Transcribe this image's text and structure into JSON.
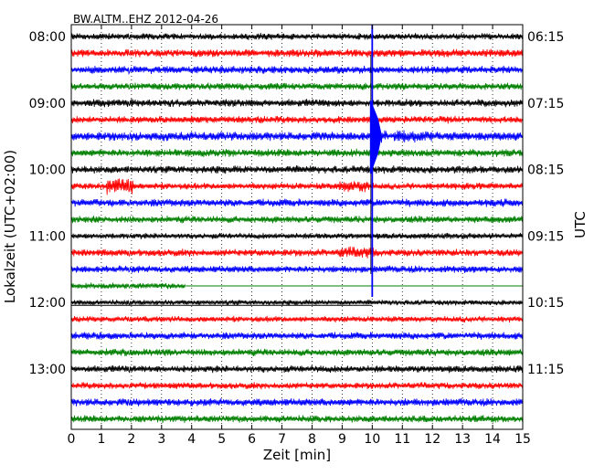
{
  "chart_data": {
    "type": "line",
    "title": "BW.ALTM..EHZ 2012-04-26",
    "xlabel": "Zeit  [min]",
    "ylabel_left": "Lokalzeit (UTC+02:00)",
    "ylabel_right": "UTC",
    "xlim": [
      0,
      15
    ],
    "x_ticks": [
      "0",
      "1",
      "2",
      "3",
      "4",
      "5",
      "6",
      "7",
      "8",
      "9",
      "10",
      "11",
      "12",
      "13",
      "14",
      "15"
    ],
    "grid": "vertical dotted lines at each minute",
    "left_tick_labels": [
      "08:00",
      "09:00",
      "10:00",
      "11:00",
      "12:00",
      "13:00"
    ],
    "right_tick_labels": [
      "06:15",
      "07:15",
      "08:15",
      "09:15",
      "10:15",
      "11:15"
    ],
    "colors": [
      "#000000",
      "#ff0000",
      "#0000ff",
      "#008000"
    ],
    "event": {
      "time_min": 10.0,
      "peak_trace": 6,
      "note": "large seismic event near minute 10"
    },
    "traces": [
      {
        "start": "08:00",
        "color": "#000000",
        "amp": 0.22,
        "end_min": 15
      },
      {
        "start": "08:15",
        "color": "#ff0000",
        "amp": 0.26,
        "end_min": 15
      },
      {
        "start": "08:30",
        "color": "#0000ff",
        "amp": 0.26,
        "end_min": 15
      },
      {
        "start": "08:45",
        "color": "#008000",
        "amp": 0.24,
        "end_min": 15
      },
      {
        "start": "09:00",
        "color": "#000000",
        "amp": 0.26,
        "end_min": 15
      },
      {
        "start": "09:15",
        "color": "#ff0000",
        "amp": 0.24,
        "end_min": 15
      },
      {
        "start": "09:30",
        "color": "#0000ff",
        "amp": 0.3,
        "end_min": 15
      },
      {
        "start": "09:45",
        "color": "#008000",
        "amp": 0.26,
        "end_min": 15
      },
      {
        "start": "10:00",
        "color": "#000000",
        "amp": 0.26,
        "end_min": 15
      },
      {
        "start": "10:15",
        "color": "#ff0000",
        "amp": 0.22,
        "end_min": 15
      },
      {
        "start": "10:30",
        "color": "#0000ff",
        "amp": 0.26,
        "end_min": 15
      },
      {
        "start": "10:45",
        "color": "#008000",
        "amp": 0.24,
        "end_min": 15
      },
      {
        "start": "11:00",
        "color": "#000000",
        "amp": 0.2,
        "end_min": 15
      },
      {
        "start": "11:15",
        "color": "#ff0000",
        "amp": 0.24,
        "end_min": 15
      },
      {
        "start": "11:30",
        "color": "#0000ff",
        "amp": 0.24,
        "end_min": 15
      },
      {
        "start": "11:45",
        "color": "#008000",
        "amp": 0.2,
        "end_min": 3.8
      },
      {
        "start": "12:00",
        "color": "#000000",
        "amp": 0.18,
        "end_min": 15
      },
      {
        "start": "12:15",
        "color": "#ff0000",
        "amp": 0.2,
        "end_min": 15
      },
      {
        "start": "12:30",
        "color": "#0000ff",
        "amp": 0.24,
        "end_min": 15
      },
      {
        "start": "12:45",
        "color": "#008000",
        "amp": 0.24,
        "end_min": 15
      },
      {
        "start": "13:00",
        "color": "#000000",
        "amp": 0.24,
        "end_min": 15
      },
      {
        "start": "13:15",
        "color": "#ff0000",
        "amp": 0.22,
        "end_min": 15
      },
      {
        "start": "13:30",
        "color": "#0000ff",
        "amp": 0.26,
        "end_min": 15
      },
      {
        "start": "13:45",
        "color": "#008000",
        "amp": 0.24,
        "end_min": 15
      }
    ]
  }
}
